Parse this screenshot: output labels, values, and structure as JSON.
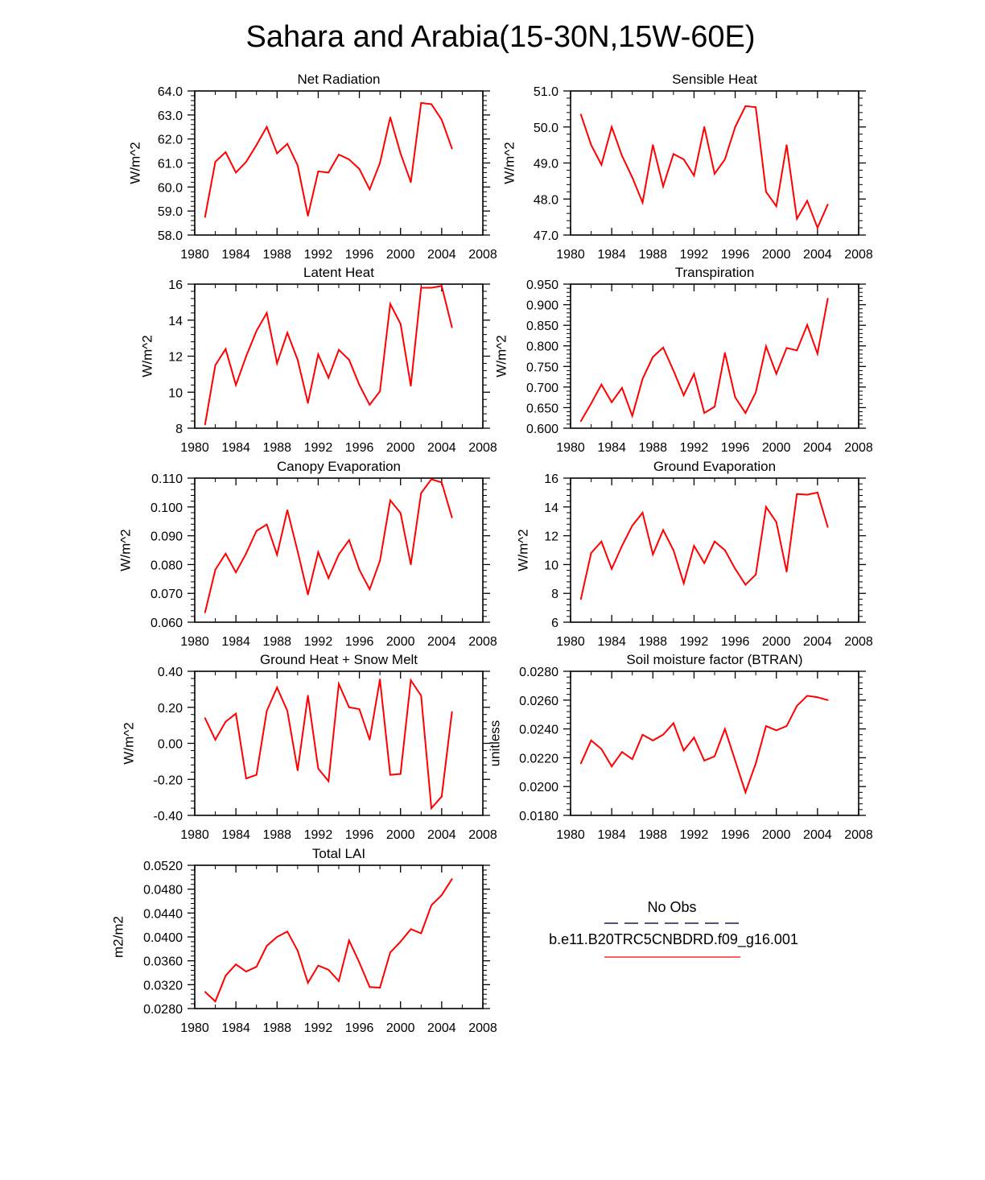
{
  "figure_title": "Sahara and Arabia(15-30N,15W-60E)",
  "legend": {
    "entries": [
      {
        "label": "No Obs",
        "color": "#1a1a4a",
        "style": "dashed"
      },
      {
        "label": "b.e11.B20TRC5CNBDRD.f09_g16.001",
        "color": "#ff0000",
        "style": "solid"
      }
    ]
  },
  "colors": {
    "series": "#ff0000",
    "axis": "#000000"
  },
  "chart_data": [
    {
      "type": "line",
      "title": "Net Radiation",
      "ylabel": "W/m^2",
      "xlim": [
        1980,
        2008
      ],
      "ylim": [
        58.0,
        64.0
      ],
      "xticks": [
        "1980",
        "1984",
        "1988",
        "1992",
        "1996",
        "2000",
        "2004",
        "2008"
      ],
      "yticks": [
        "58.0",
        "59.0",
        "60.0",
        "61.0",
        "62.0",
        "63.0",
        "64.0"
      ],
      "x": [
        1981,
        1982,
        1983,
        1984,
        1985,
        1986,
        1987,
        1988,
        1989,
        1990,
        1991,
        1992,
        1993,
        1994,
        1995,
        1996,
        1997,
        1998,
        1999,
        2000,
        2001,
        2002,
        2003,
        2004,
        2005
      ],
      "series": [
        {
          "name": "b.e11.B20TRC5CNBDRD.f09_g16.001",
          "values": [
            58.75,
            61.05,
            61.45,
            60.6,
            61.05,
            61.75,
            62.5,
            61.4,
            61.8,
            60.9,
            58.8,
            60.65,
            60.6,
            61.35,
            61.15,
            60.75,
            59.9,
            61.0,
            62.9,
            61.4,
            60.2,
            63.5,
            63.45,
            62.8,
            61.6
          ]
        }
      ]
    },
    {
      "type": "line",
      "title": "Sensible Heat",
      "ylabel": "W/m^2",
      "xlim": [
        1980,
        2008
      ],
      "ylim": [
        47.0,
        51.0
      ],
      "xticks": [
        "1980",
        "1984",
        "1988",
        "1992",
        "1996",
        "2000",
        "2004",
        "2008"
      ],
      "yticks": [
        "47.0",
        "48.0",
        "49.0",
        "50.0",
        "51.0"
      ],
      "x": [
        1981,
        1982,
        1983,
        1984,
        1985,
        1986,
        1987,
        1988,
        1989,
        1990,
        1991,
        1992,
        1993,
        1994,
        1995,
        1996,
        1997,
        1998,
        1999,
        2000,
        2001,
        2002,
        2003,
        2004,
        2005
      ],
      "series": [
        {
          "name": "b.e11.B20TRC5CNBDRD.f09_g16.001",
          "values": [
            50.35,
            49.5,
            48.95,
            50.0,
            49.2,
            48.6,
            47.9,
            49.5,
            48.35,
            49.25,
            49.1,
            48.65,
            50.0,
            48.7,
            49.1,
            50.0,
            50.58,
            50.55,
            48.2,
            47.8,
            49.5,
            47.45,
            47.95,
            47.2,
            47.85
          ]
        }
      ]
    },
    {
      "type": "line",
      "title": "Latent Heat",
      "ylabel": "W/m^2",
      "xlim": [
        1980,
        2008
      ],
      "ylim": [
        8,
        16
      ],
      "xticks": [
        "1980",
        "1984",
        "1988",
        "1992",
        "1996",
        "2000",
        "2004",
        "2008"
      ],
      "yticks": [
        "8",
        "10",
        "12",
        "14",
        "16"
      ],
      "x": [
        1981,
        1982,
        1983,
        1984,
        1985,
        1986,
        1987,
        1988,
        1989,
        1990,
        1991,
        1992,
        1993,
        1994,
        1995,
        1996,
        1997,
        1998,
        1999,
        2000,
        2001,
        2002,
        2003,
        2004,
        2005
      ],
      "series": [
        {
          "name": "b.e11.B20TRC5CNBDRD.f09_g16.001",
          "values": [
            8.2,
            11.5,
            12.4,
            10.4,
            12.0,
            13.4,
            14.4,
            11.6,
            13.3,
            11.8,
            9.4,
            12.1,
            10.8,
            12.35,
            11.8,
            10.4,
            9.3,
            10.05,
            14.9,
            13.8,
            10.35,
            15.8,
            15.8,
            15.9,
            13.6
          ]
        }
      ]
    },
    {
      "type": "line",
      "title": "Transpiration",
      "ylabel": "W/m^2",
      "xlim": [
        1980,
        2008
      ],
      "ylim": [
        0.6,
        0.95
      ],
      "xticks": [
        "1980",
        "1984",
        "1988",
        "1992",
        "1996",
        "2000",
        "2004",
        "2008"
      ],
      "yticks": [
        "0.600",
        "0.650",
        "0.700",
        "0.750",
        "0.800",
        "0.850",
        "0.900",
        "0.950"
      ],
      "x": [
        1981,
        1982,
        1983,
        1984,
        1985,
        1986,
        1987,
        1988,
        1989,
        1990,
        1991,
        1992,
        1993,
        1994,
        1995,
        1996,
        1997,
        1998,
        1999,
        2000,
        2001,
        2002,
        2003,
        2004,
        2005
      ],
      "series": [
        {
          "name": "b.e11.B20TRC5CNBDRD.f09_g16.001",
          "values": [
            0.617,
            0.66,
            0.706,
            0.663,
            0.698,
            0.63,
            0.72,
            0.773,
            0.796,
            0.74,
            0.68,
            0.732,
            0.637,
            0.652,
            0.783,
            0.675,
            0.637,
            0.687,
            0.799,
            0.732,
            0.795,
            0.789,
            0.851,
            0.781,
            0.915
          ]
        }
      ]
    },
    {
      "type": "line",
      "title": "Canopy Evaporation",
      "ylabel": "W/m^2",
      "xlim": [
        1980,
        2008
      ],
      "ylim": [
        0.06,
        0.11
      ],
      "xticks": [
        "1980",
        "1984",
        "1988",
        "1992",
        "1996",
        "2000",
        "2004",
        "2008"
      ],
      "yticks": [
        "0.060",
        "0.070",
        "0.080",
        "0.090",
        "0.100",
        "0.110"
      ],
      "x": [
        1981,
        1982,
        1983,
        1984,
        1985,
        1986,
        1987,
        1988,
        1989,
        1990,
        1991,
        1992,
        1993,
        1994,
        1995,
        1996,
        1997,
        1998,
        1999,
        2000,
        2001,
        2002,
        2003,
        2004,
        2005
      ],
      "series": [
        {
          "name": "b.e11.B20TRC5CNBDRD.f09_g16.001",
          "values": [
            0.0634,
            0.0782,
            0.0838,
            0.0773,
            0.0839,
            0.0917,
            0.0939,
            0.0834,
            0.0989,
            0.0846,
            0.0696,
            0.0843,
            0.0753,
            0.0835,
            0.0885,
            0.0782,
            0.0714,
            0.0813,
            0.1023,
            0.0979,
            0.08,
            0.1048,
            0.1096,
            0.1085,
            0.0963
          ]
        }
      ]
    },
    {
      "type": "line",
      "title": "Ground Evaporation",
      "ylabel": "W/m^2",
      "xlim": [
        1980,
        2008
      ],
      "ylim": [
        6,
        16
      ],
      "xticks": [
        "1980",
        "1984",
        "1988",
        "1992",
        "1996",
        "2000",
        "2004",
        "2008"
      ],
      "yticks": [
        "6",
        "8",
        "10",
        "12",
        "14",
        "16"
      ],
      "x": [
        1981,
        1982,
        1983,
        1984,
        1985,
        1986,
        1987,
        1988,
        1989,
        1990,
        1991,
        1992,
        1993,
        1994,
        1995,
        1996,
        1997,
        1998,
        1999,
        2000,
        2001,
        2002,
        2003,
        2004,
        2005
      ],
      "series": [
        {
          "name": "b.e11.B20TRC5CNBDRD.f09_g16.001",
          "values": [
            7.6,
            10.8,
            11.6,
            9.7,
            11.3,
            12.7,
            13.6,
            10.7,
            12.4,
            11.0,
            8.7,
            11.3,
            10.1,
            11.6,
            11.0,
            9.7,
            8.6,
            9.3,
            14.0,
            12.95,
            9.5,
            14.9,
            14.85,
            15.0,
            12.6
          ]
        }
      ]
    },
    {
      "type": "line",
      "title": "Ground Heat + Snow Melt",
      "ylabel": "W/m^2",
      "xlim": [
        1980,
        2008
      ],
      "ylim": [
        -0.4,
        0.4
      ],
      "xticks": [
        "1980",
        "1984",
        "1988",
        "1992",
        "1996",
        "2000",
        "2004",
        "2008"
      ],
      "yticks": [
        "-0.40",
        "-0.20",
        "0.00",
        "0.20",
        "0.40"
      ],
      "x": [
        1981,
        1982,
        1983,
        1984,
        1985,
        1986,
        1987,
        1988,
        1989,
        1990,
        1991,
        1992,
        1993,
        1994,
        1995,
        1996,
        1997,
        1998,
        1999,
        2000,
        2001,
        2002,
        2003,
        2004,
        2005
      ],
      "series": [
        {
          "name": "b.e11.B20TRC5CNBDRD.f09_g16.001",
          "values": [
            0.14,
            0.02,
            0.12,
            0.165,
            -0.195,
            -0.175,
            0.18,
            0.31,
            0.18,
            -0.15,
            0.265,
            -0.14,
            -0.21,
            0.33,
            0.2,
            0.19,
            0.02,
            0.355,
            -0.175,
            -0.17,
            0.35,
            0.265,
            -0.36,
            -0.295,
            0.175
          ]
        }
      ]
    },
    {
      "type": "line",
      "title": "Soil moisture factor (BTRAN)",
      "ylabel": "unitless",
      "xlim": [
        1980,
        2008
      ],
      "ylim": [
        0.018,
        0.028
      ],
      "xticks": [
        "1980",
        "1984",
        "1988",
        "1992",
        "1996",
        "2000",
        "2004",
        "2008"
      ],
      "yticks": [
        "0.0180",
        "0.0200",
        "0.0220",
        "0.0240",
        "0.0260",
        "0.0280"
      ],
      "x": [
        1981,
        1982,
        1983,
        1984,
        1985,
        1986,
        1987,
        1988,
        1989,
        1990,
        1991,
        1992,
        1993,
        1994,
        1995,
        1996,
        1997,
        1998,
        1999,
        2000,
        2001,
        2002,
        2003,
        2004,
        2005
      ],
      "series": [
        {
          "name": "b.e11.B20TRC5CNBDRD.f09_g16.001",
          "values": [
            0.0216,
            0.0232,
            0.0226,
            0.0214,
            0.0224,
            0.0219,
            0.0236,
            0.0232,
            0.0236,
            0.0244,
            0.0225,
            0.0234,
            0.0218,
            0.0221,
            0.024,
            0.0218,
            0.0196,
            0.0216,
            0.0242,
            0.0239,
            0.0242,
            0.0256,
            0.0263,
            0.0262,
            0.026
          ]
        }
      ]
    },
    {
      "type": "line",
      "title": "Total LAI",
      "ylabel": "m2/m2",
      "xlim": [
        1980,
        2008
      ],
      "ylim": [
        0.028,
        0.052
      ],
      "xticks": [
        "1980",
        "1984",
        "1988",
        "1992",
        "1996",
        "2000",
        "2004",
        "2008"
      ],
      "yticks": [
        "0.0280",
        "0.0320",
        "0.0360",
        "0.0400",
        "0.0440",
        "0.0480",
        "0.0520"
      ],
      "x": [
        1981,
        1982,
        1983,
        1984,
        1985,
        1986,
        1987,
        1988,
        1989,
        1990,
        1991,
        1992,
        1993,
        1994,
        1995,
        1996,
        1997,
        1998,
        1999,
        2000,
        2001,
        2002,
        2003,
        2004,
        2005
      ],
      "series": [
        {
          "name": "b.e11.B20TRC5CNBDRD.f09_g16.001",
          "values": [
            0.0308,
            0.0292,
            0.0335,
            0.0354,
            0.0342,
            0.035,
            0.0385,
            0.04,
            0.0409,
            0.0377,
            0.0323,
            0.0352,
            0.0345,
            0.0326,
            0.0394,
            0.0357,
            0.0316,
            0.0315,
            0.0374,
            0.0392,
            0.0413,
            0.0406,
            0.0453,
            0.047,
            0.0497
          ]
        }
      ]
    }
  ]
}
